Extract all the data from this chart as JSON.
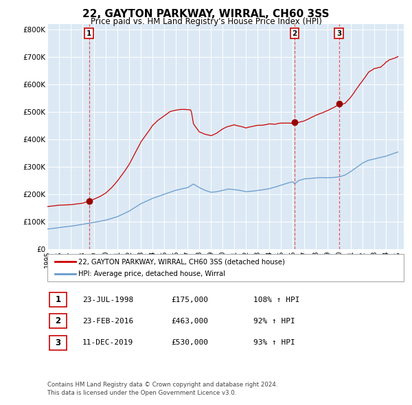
{
  "title": "22, GAYTON PARKWAY, WIRRAL, CH60 3SS",
  "subtitle": "Price paid vs. HM Land Registry's House Price Index (HPI)",
  "background_color": "#dce9f5",
  "red_line_color": "#cc0000",
  "blue_line_color": "#6699cc",
  "dashed_line_color": "#dd4444",
  "marker_color": "#990000",
  "sale_dates_decimal": [
    1998.56,
    2016.15,
    2019.95
  ],
  "sale_prices": [
    175000,
    463000,
    530000
  ],
  "sale_labels": [
    "1",
    "2",
    "3"
  ],
  "legend_label_red": "22, GAYTON PARKWAY, WIRRAL, CH60 3SS (detached house)",
  "legend_label_blue": "HPI: Average price, detached house, Wirral",
  "table_rows": [
    [
      "1",
      "23-JUL-1998",
      "£175,000",
      "108% ↑ HPI"
    ],
    [
      "2",
      "23-FEB-2016",
      "£463,000",
      "92% ↑ HPI"
    ],
    [
      "3",
      "11-DEC-2019",
      "£530,000",
      "93% ↑ HPI"
    ]
  ],
  "footer": "Contains HM Land Registry data © Crown copyright and database right 2024.\nThis data is licensed under the Open Government Licence v3.0.",
  "ylim": [
    0,
    820000
  ],
  "yticks": [
    0,
    100000,
    200000,
    300000,
    400000,
    500000,
    600000,
    700000,
    800000
  ],
  "ytick_labels": [
    "£0",
    "£100K",
    "£200K",
    "£300K",
    "£400K",
    "£500K",
    "£600K",
    "£700K",
    "£800K"
  ],
  "red_keypoints": [
    [
      1995.0,
      155000
    ],
    [
      1996.0,
      160000
    ],
    [
      1997.0,
      162000
    ],
    [
      1997.5,
      165000
    ],
    [
      1998.0,
      168000
    ],
    [
      1998.56,
      175000
    ],
    [
      1999.0,
      183000
    ],
    [
      1999.5,
      192000
    ],
    [
      2000.0,
      205000
    ],
    [
      2000.5,
      225000
    ],
    [
      2001.0,
      250000
    ],
    [
      2001.5,
      278000
    ],
    [
      2002.0,
      310000
    ],
    [
      2002.5,
      350000
    ],
    [
      2003.0,
      390000
    ],
    [
      2003.5,
      420000
    ],
    [
      2004.0,
      450000
    ],
    [
      2004.5,
      470000
    ],
    [
      2005.0,
      485000
    ],
    [
      2005.5,
      500000
    ],
    [
      2006.0,
      505000
    ],
    [
      2006.5,
      510000
    ],
    [
      2007.0,
      510000
    ],
    [
      2007.3,
      510000
    ],
    [
      2007.5,
      460000
    ],
    [
      2008.0,
      430000
    ],
    [
      2008.5,
      420000
    ],
    [
      2009.0,
      415000
    ],
    [
      2009.5,
      425000
    ],
    [
      2010.0,
      440000
    ],
    [
      2010.5,
      450000
    ],
    [
      2011.0,
      455000
    ],
    [
      2011.5,
      450000
    ],
    [
      2012.0,
      445000
    ],
    [
      2012.5,
      450000
    ],
    [
      2013.0,
      455000
    ],
    [
      2013.5,
      455000
    ],
    [
      2014.0,
      460000
    ],
    [
      2014.5,
      458000
    ],
    [
      2015.0,
      462000
    ],
    [
      2015.5,
      462000
    ],
    [
      2016.0,
      462000
    ],
    [
      2016.15,
      463000
    ],
    [
      2016.5,
      465000
    ],
    [
      2017.0,
      470000
    ],
    [
      2017.5,
      480000
    ],
    [
      2018.0,
      490000
    ],
    [
      2018.5,
      500000
    ],
    [
      2019.0,
      510000
    ],
    [
      2019.5,
      520000
    ],
    [
      2019.95,
      530000
    ],
    [
      2020.0,
      528000
    ],
    [
      2020.5,
      535000
    ],
    [
      2021.0,
      560000
    ],
    [
      2021.5,
      590000
    ],
    [
      2022.0,
      620000
    ],
    [
      2022.5,
      650000
    ],
    [
      2023.0,
      665000
    ],
    [
      2023.5,
      670000
    ],
    [
      2024.0,
      690000
    ],
    [
      2024.5,
      700000
    ],
    [
      2025.0,
      710000
    ]
  ],
  "blue_keypoints": [
    [
      1995.0,
      73000
    ],
    [
      1996.0,
      78000
    ],
    [
      1997.0,
      83000
    ],
    [
      1998.0,
      90000
    ],
    [
      1999.0,
      97000
    ],
    [
      2000.0,
      105000
    ],
    [
      2001.0,
      118000
    ],
    [
      2002.0,
      138000
    ],
    [
      2003.0,
      165000
    ],
    [
      2004.0,
      185000
    ],
    [
      2005.0,
      200000
    ],
    [
      2006.0,
      215000
    ],
    [
      2007.0,
      225000
    ],
    [
      2007.5,
      238000
    ],
    [
      2008.0,
      225000
    ],
    [
      2008.5,
      215000
    ],
    [
      2009.0,
      208000
    ],
    [
      2009.5,
      210000
    ],
    [
      2010.0,
      215000
    ],
    [
      2010.5,
      220000
    ],
    [
      2011.0,
      218000
    ],
    [
      2011.5,
      215000
    ],
    [
      2012.0,
      210000
    ],
    [
      2012.5,
      212000
    ],
    [
      2013.0,
      215000
    ],
    [
      2013.5,
      218000
    ],
    [
      2014.0,
      222000
    ],
    [
      2014.5,
      228000
    ],
    [
      2015.0,
      235000
    ],
    [
      2015.5,
      242000
    ],
    [
      2016.0,
      248000
    ],
    [
      2016.15,
      240000
    ],
    [
      2016.5,
      252000
    ],
    [
      2017.0,
      258000
    ],
    [
      2017.5,
      260000
    ],
    [
      2018.0,
      262000
    ],
    [
      2018.5,
      263000
    ],
    [
      2019.0,
      262000
    ],
    [
      2019.5,
      263000
    ],
    [
      2019.95,
      265000
    ],
    [
      2020.0,
      265000
    ],
    [
      2020.5,
      272000
    ],
    [
      2021.0,
      285000
    ],
    [
      2021.5,
      300000
    ],
    [
      2022.0,
      315000
    ],
    [
      2022.5,
      325000
    ],
    [
      2023.0,
      330000
    ],
    [
      2023.5,
      335000
    ],
    [
      2024.0,
      340000
    ],
    [
      2024.5,
      348000
    ],
    [
      2025.0,
      355000
    ]
  ]
}
